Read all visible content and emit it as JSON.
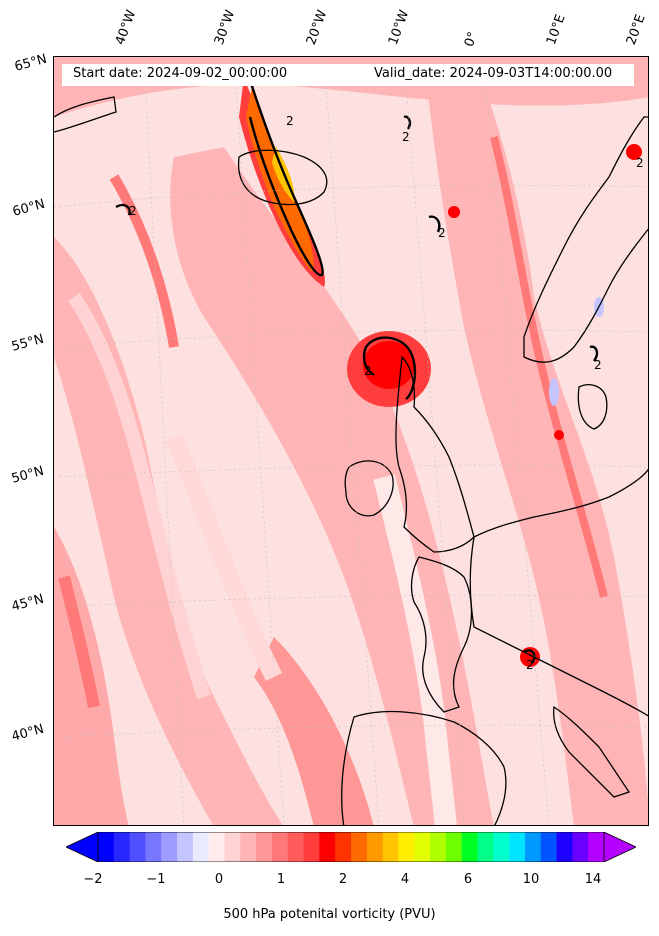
{
  "header": {
    "start_date": "Start date: 2024-09-02_00:00:00",
    "valid_date": "Valid_date: 2024-09-03T14:00:00.00"
  },
  "longitude_labels": [
    "40°W",
    "30°W",
    "20°W",
    "10°W",
    "0°",
    "10°E",
    "20°E"
  ],
  "latitude_labels": [
    "65°N",
    "60°N",
    "55°N",
    "50°N",
    "45°N",
    "40°N"
  ],
  "contour_label": "2",
  "colorbar": {
    "title": "500 hPa potenital vorticity (PVU)",
    "ticks": [
      "−2",
      "−1",
      "0",
      "1",
      "2",
      "4",
      "6",
      "10",
      "14"
    ],
    "colors": [
      "#0000ff",
      "#2727ff",
      "#4f4fff",
      "#7676ff",
      "#9d9dff",
      "#c4c4ff",
      "#ebebff",
      "#ffebeb",
      "#ffd3d3",
      "#ffb5b5",
      "#ff9797",
      "#ff7979",
      "#ff5b5b",
      "#ff3d3d",
      "#ff0000",
      "#ff3300",
      "#ff6a00",
      "#ff9900",
      "#ffc400",
      "#ffee00",
      "#e1ff00",
      "#b0ff00",
      "#6eff00",
      "#00ff22",
      "#00ff88",
      "#00ffcc",
      "#00e5ff",
      "#0099ff",
      "#0055ff",
      "#1d00ff",
      "#6a00ff",
      "#b300ff"
    ]
  },
  "map_colors": {
    "ocean_base": "#fde0e0",
    "light": "#ffd0d0",
    "medium": "#ffaaaa",
    "strong": "#ff7070",
    "intense": "#ff2a2a",
    "peak_red": "#ff0000",
    "peak_orange": "#ff6a00",
    "peak_yellow": "#ffc400",
    "contour": "#000000",
    "coast": "#000000"
  }
}
